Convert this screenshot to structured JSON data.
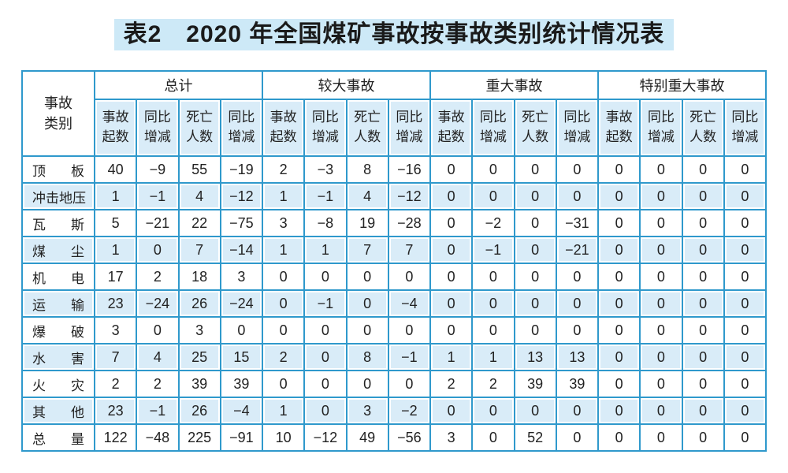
{
  "title": "表2　2020 年全国煤矿事故按事故类别统计情况表",
  "colors": {
    "grid-blue": "#2f99cc",
    "fill-blue": "#d9ecf8",
    "title-band": "#cde9f7",
    "text-dark": "#222222"
  },
  "table": {
    "corner_header": "事故类别",
    "groups": [
      {
        "label": "总计",
        "sub_headers": [
          "事故起数",
          "同比增减",
          "死亡人数",
          "同比增减"
        ]
      },
      {
        "label": "较大事故",
        "sub_headers": [
          "事故起数",
          "同比增减",
          "死亡人数",
          "同比增减"
        ]
      },
      {
        "label": "重大事故",
        "sub_headers": [
          "事故起数",
          "同比增减",
          "死亡人数",
          "同比增减"
        ]
      },
      {
        "label": "特别重大事故",
        "sub_headers": [
          "事故起数",
          "同比增减",
          "死亡人数",
          "同比增减"
        ]
      }
    ],
    "rows": [
      {
        "label": "顶板",
        "values": [
          "40",
          "−9",
          "55",
          "−19",
          "2",
          "−3",
          "8",
          "−16",
          "0",
          "0",
          "0",
          "0",
          "0",
          "0",
          "0",
          "0"
        ]
      },
      {
        "label": "冲击地压",
        "values": [
          "1",
          "−1",
          "4",
          "−12",
          "1",
          "−1",
          "4",
          "−12",
          "0",
          "0",
          "0",
          "0",
          "0",
          "0",
          "0",
          "0"
        ]
      },
      {
        "label": "瓦斯",
        "values": [
          "5",
          "−21",
          "22",
          "−75",
          "3",
          "−8",
          "19",
          "−28",
          "0",
          "−2",
          "0",
          "−31",
          "0",
          "0",
          "0",
          "0"
        ]
      },
      {
        "label": "煤尘",
        "values": [
          "1",
          "0",
          "7",
          "−14",
          "1",
          "1",
          "7",
          "7",
          "0",
          "−1",
          "0",
          "−21",
          "0",
          "0",
          "0",
          "0"
        ]
      },
      {
        "label": "机电",
        "values": [
          "17",
          "2",
          "18",
          "3",
          "0",
          "0",
          "0",
          "0",
          "0",
          "0",
          "0",
          "0",
          "0",
          "0",
          "0",
          "0"
        ]
      },
      {
        "label": "运输",
        "values": [
          "23",
          "−24",
          "26",
          "−24",
          "0",
          "−1",
          "0",
          "−4",
          "0",
          "0",
          "0",
          "0",
          "0",
          "0",
          "0",
          "0"
        ]
      },
      {
        "label": "爆破",
        "values": [
          "3",
          "0",
          "3",
          "0",
          "0",
          "0",
          "0",
          "0",
          "0",
          "0",
          "0",
          "0",
          "0",
          "0",
          "0",
          "0"
        ]
      },
      {
        "label": "水害",
        "values": [
          "7",
          "4",
          "25",
          "15",
          "2",
          "0",
          "8",
          "−1",
          "1",
          "1",
          "13",
          "13",
          "0",
          "0",
          "0",
          "0"
        ]
      },
      {
        "label": "火灾",
        "values": [
          "2",
          "2",
          "39",
          "39",
          "0",
          "0",
          "0",
          "0",
          "2",
          "2",
          "39",
          "39",
          "0",
          "0",
          "0",
          "0"
        ]
      },
      {
        "label": "其他",
        "values": [
          "23",
          "−1",
          "26",
          "−4",
          "1",
          "0",
          "3",
          "−2",
          "0",
          "0",
          "0",
          "0",
          "0",
          "0",
          "0",
          "0"
        ]
      },
      {
        "label": "总量",
        "values": [
          "122",
          "−48",
          "225",
          "−91",
          "10",
          "−12",
          "49",
          "−56",
          "3",
          "0",
          "52",
          "0",
          "0",
          "0",
          "0",
          "0"
        ]
      }
    ]
  }
}
